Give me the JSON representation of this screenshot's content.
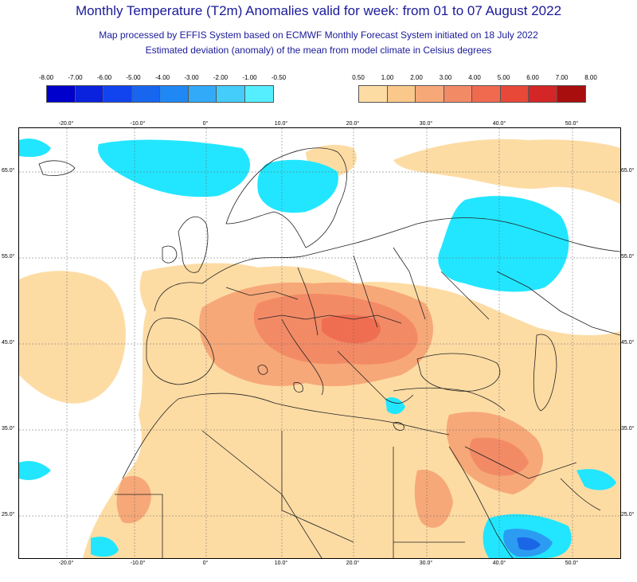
{
  "header": {
    "title": "Monthly Temperature (T2m) Anomalies valid for week: from 01 to 07 August 2022",
    "subtitle1": "Map processed by EFFIS System based on ECMWF Monthly Forecast System initiated on 18 July 2022",
    "subtitle2": "Estimated deviation (anomaly) of the mean from model climate in Celsius degrees"
  },
  "legend_cold": {
    "labels": [
      "-8.00",
      "-7.00",
      "-6.00",
      "-5.00",
      "-4.00",
      "-3.00",
      "-2.00",
      "-1.00",
      "-0.50"
    ],
    "colors": [
      "#0000cc",
      "#0a22dd",
      "#1144ee",
      "#1866f0",
      "#2088f4",
      "#33aaf8",
      "#44ccfa",
      "#55eeff"
    ]
  },
  "legend_warm": {
    "labels": [
      "0.50",
      "1.00",
      "2.00",
      "3.00",
      "4.00",
      "5.00",
      "6.00",
      "7.00",
      "8.00"
    ],
    "colors": [
      "#fddca4",
      "#fac88a",
      "#f7a878",
      "#f38a66",
      "#f06a50",
      "#e84838",
      "#d42626",
      "#a80e0e"
    ]
  },
  "axes": {
    "lon_labels": [
      "-20.0°",
      "-10.0°",
      "0°",
      "10.0°",
      "20.0°",
      "30.0°",
      "40.0°",
      "50.0°"
    ],
    "lat_labels": [
      "65.0°",
      "55.0°",
      "45.0°",
      "35.0°",
      "25.0°"
    ]
  },
  "colors": {
    "anomaly_light_warm": "#fddca4",
    "anomaly_warm": "#f7a878",
    "anomaly_hot": "#f38a66",
    "anomaly_hotter": "#ef6e52",
    "anomaly_cold": "#22e6ff",
    "anomaly_colder": "#2b9cf2",
    "anomaly_coldest": "#1a66e6",
    "border_lines": "#222222"
  }
}
